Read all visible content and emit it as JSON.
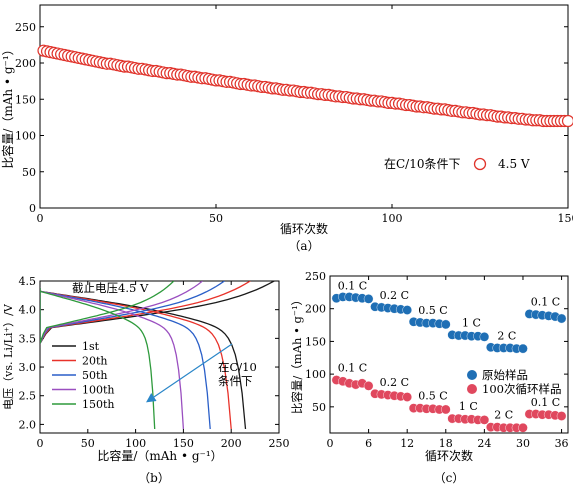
{
  "chart_data": [
    {
      "panel": "(a)",
      "type": "scatter",
      "xlabel": "循环次数",
      "ylabel": "比容量/（mAh • g⁻¹）",
      "xlim": [
        0,
        150
      ],
      "ylim": [
        0,
        280
      ],
      "xticks": [
        0,
        50,
        100,
        150
      ],
      "yticks": [
        0,
        50,
        100,
        150,
        200,
        250
      ],
      "annotation": "在C/10条件下",
      "legend_label": "4.5 V",
      "legend_position": "center-right",
      "marker": "open-circle",
      "color": "#e0342c",
      "series": [
        {
          "name": "4.5 V",
          "x_start": 1,
          "x_step": 1,
          "y": [
            217,
            216,
            215,
            214,
            213,
            212,
            211,
            210,
            209,
            208,
            207,
            206,
            205,
            204,
            203,
            202,
            201,
            200,
            199,
            199,
            198,
            197,
            196,
            195,
            195,
            194,
            193,
            192,
            192,
            191,
            190,
            189,
            189,
            188,
            187,
            186,
            186,
            185,
            184,
            184,
            183,
            182,
            181,
            181,
            180,
            179,
            179,
            178,
            177,
            176,
            176,
            175,
            174,
            174,
            173,
            172,
            171,
            171,
            170,
            169,
            169,
            168,
            167,
            167,
            166,
            165,
            165,
            164,
            163,
            163,
            162,
            162,
            161,
            160,
            160,
            159,
            159,
            158,
            157,
            157,
            156,
            156,
            155,
            154,
            154,
            153,
            153,
            152,
            151,
            151,
            150,
            150,
            149,
            148,
            148,
            147,
            147,
            146,
            145,
            145,
            144,
            144,
            143,
            142,
            142,
            141,
            140,
            140,
            139,
            139,
            138,
            137,
            137,
            136,
            136,
            135,
            134,
            134,
            133,
            132,
            132,
            131,
            131,
            130,
            129,
            129,
            128,
            128,
            127,
            126,
            126,
            125,
            125,
            124,
            124,
            123,
            123,
            122,
            122,
            121,
            121,
            121,
            120,
            120,
            120,
            120,
            120,
            120,
            120,
            120
          ]
        }
      ]
    },
    {
      "panel": "(b)",
      "type": "line",
      "xlabel": "比容量/（mAh • g⁻¹）",
      "ylabel": "电压（vs. Li/Li⁺）/V",
      "xlim": [
        0,
        250
      ],
      "ylim": [
        1.85,
        4.5
      ],
      "xticks": [
        0,
        50,
        100,
        150,
        200,
        250
      ],
      "yticks": [
        2.0,
        2.5,
        3.0,
        3.5,
        4.0,
        4.5
      ],
      "ytick_labels": [
        "2.0",
        "2.5",
        "3.0",
        "3.5",
        "4.0",
        "4.5"
      ],
      "annotations": [
        "截止电压4.5 V",
        "在C/10",
        "条件下"
      ],
      "legend_position": "lower-left",
      "series": [
        {
          "name": "1st",
          "color": "#1a1a1a",
          "charge_capacity": 245,
          "discharge_capacity": 215
        },
        {
          "name": "20th",
          "color": "#e8322a",
          "charge_capacity": 220,
          "discharge_capacity": 200
        },
        {
          "name": "50th",
          "color": "#2a5fc8",
          "charge_capacity": 193,
          "discharge_capacity": 178
        },
        {
          "name": "100th",
          "color": "#9a4fc0",
          "charge_capacity": 170,
          "discharge_capacity": 150
        },
        {
          "name": "150th",
          "color": "#2e9a3c",
          "charge_capacity": 140,
          "discharge_capacity": 120
        }
      ]
    },
    {
      "panel": "(c)",
      "type": "scatter",
      "xlabel": "循环次数",
      "ylabel": "比容量/（mAh • g⁻¹）",
      "xlim": [
        0,
        37
      ],
      "ylim": [
        10,
        250
      ],
      "xticks": [
        0,
        6,
        12,
        18,
        24,
        30,
        36
      ],
      "yticks": [
        50,
        100,
        150,
        200,
        250
      ],
      "legend_position": "center-right",
      "rate_labels_top": [
        "0.1 C",
        "0.2 C",
        "0.5 C",
        "1 C",
        "2 C",
        "0.1 C"
      ],
      "rate_labels_bottom": [
        "0.1 C",
        "0.2 C",
        "0.5 C",
        "1 C",
        "2 C",
        "0.1 C"
      ],
      "series": [
        {
          "name": "原始样品",
          "color": "#1f6fb5",
          "x": [
            1,
            2,
            3,
            4,
            5,
            6,
            7,
            8,
            9,
            10,
            11,
            12,
            13,
            14,
            15,
            16,
            17,
            18,
            19,
            20,
            21,
            22,
            23,
            24,
            25,
            26,
            27,
            28,
            29,
            30,
            31,
            32,
            33,
            34,
            35,
            36
          ],
          "y": [
            216,
            218,
            218,
            217,
            216,
            215,
            203,
            202,
            201,
            200,
            199,
            198,
            180,
            179,
            178,
            178,
            177,
            176,
            160,
            159,
            159,
            158,
            158,
            157,
            141,
            140,
            140,
            140,
            139,
            139,
            192,
            191,
            190,
            189,
            188,
            185
          ]
        },
        {
          "name": "100次循环样品",
          "color": "#e0485e",
          "x": [
            1,
            2,
            3,
            4,
            5,
            6,
            7,
            8,
            9,
            10,
            11,
            12,
            13,
            14,
            15,
            16,
            17,
            18,
            19,
            20,
            21,
            22,
            23,
            24,
            25,
            26,
            27,
            28,
            29,
            30,
            31,
            32,
            33,
            34,
            35,
            36
          ],
          "y": [
            91,
            89,
            86,
            84,
            86,
            82,
            70,
            69,
            68,
            67,
            66,
            65,
            48,
            48,
            47,
            47,
            46,
            46,
            32,
            32,
            31,
            31,
            30,
            30,
            19,
            19,
            18,
            18,
            18,
            18,
            39,
            39,
            38,
            38,
            37,
            36
          ]
        }
      ]
    }
  ],
  "captions": {
    "a": "（a）",
    "b": "（b）",
    "c": "（c）"
  },
  "b_legend_labels": [
    "1st",
    "20th",
    "50th",
    "100th",
    "150th"
  ]
}
